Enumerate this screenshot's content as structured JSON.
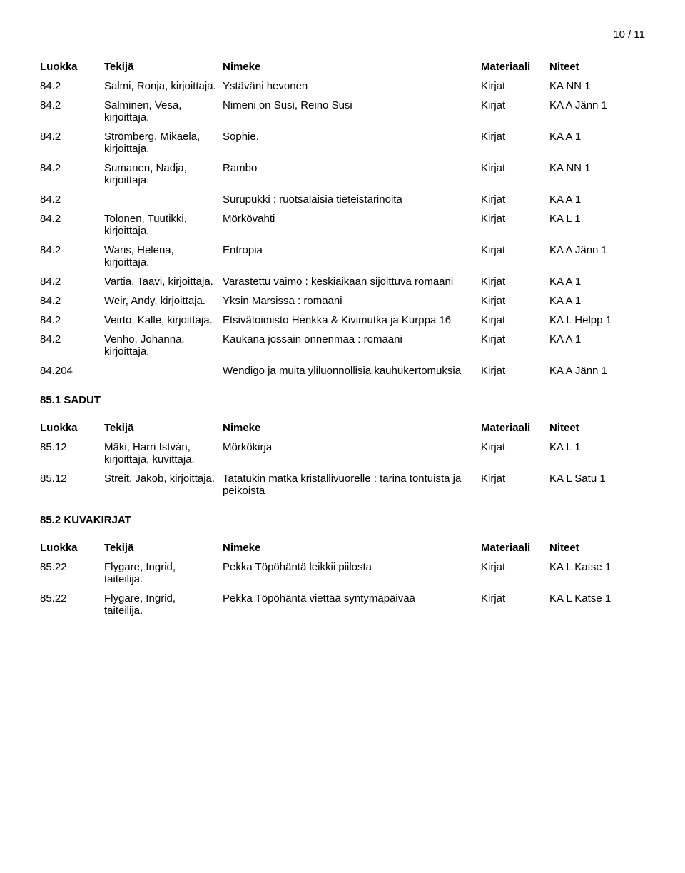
{
  "page_number": "10 / 11",
  "headers": {
    "luokka": "Luokka",
    "tekija": "Tekijä",
    "nimeke": "Nimeke",
    "materiaali": "Materiaali",
    "niteet": "Niteet"
  },
  "sections": [
    {
      "title": null,
      "rows": [
        {
          "luokka": "84.2",
          "tekija": "Salmi, Ronja, kirjoittaja.",
          "nimeke": "Ystäväni hevonen",
          "mat": "Kirjat",
          "niteet": "KA NN 1"
        },
        {
          "luokka": "84.2",
          "tekija": "Salminen, Vesa, kirjoittaja.",
          "nimeke": "Nimeni on Susi, Reino Susi",
          "mat": "Kirjat",
          "niteet": "KA A Jänn 1"
        },
        {
          "luokka": "84.2",
          "tekija": "Strömberg, Mikaela, kirjoittaja.",
          "nimeke": "Sophie.",
          "mat": "Kirjat",
          "niteet": "KA A 1"
        },
        {
          "luokka": "84.2",
          "tekija": "Sumanen, Nadja, kirjoittaja.",
          "nimeke": "Rambo",
          "mat": "Kirjat",
          "niteet": "KA NN 1"
        },
        {
          "luokka": "84.2",
          "tekija": "",
          "nimeke": "Surupukki : ruotsalaisia tieteistarinoita",
          "mat": "Kirjat",
          "niteet": "KA A 1"
        },
        {
          "luokka": "84.2",
          "tekija": "Tolonen, Tuutikki, kirjoittaja.",
          "nimeke": "Mörkövahti",
          "mat": "Kirjat",
          "niteet": "KA L 1"
        },
        {
          "luokka": "84.2",
          "tekija": "Waris, Helena, kirjoittaja.",
          "nimeke": "Entropia",
          "mat": "Kirjat",
          "niteet": "KA A Jänn 1"
        },
        {
          "luokka": "84.2",
          "tekija": "Vartia, Taavi, kirjoittaja.",
          "nimeke": "Varastettu vaimo : keskiaikaan sijoittuva romaani",
          "mat": "Kirjat",
          "niteet": "KA A 1"
        },
        {
          "luokka": "84.2",
          "tekija": "Weir, Andy, kirjoittaja.",
          "nimeke": "Yksin Marsissa : romaani",
          "mat": "Kirjat",
          "niteet": "KA A 1"
        },
        {
          "luokka": "84.2",
          "tekija": "Veirto, Kalle, kirjoittaja.",
          "nimeke": "Etsivätoimisto Henkka & Kivimutka ja Kurppa 16",
          "mat": "Kirjat",
          "niteet": "KA L Helpp 1"
        },
        {
          "luokka": "84.2",
          "tekija": "Venho, Johanna, kirjoittaja.",
          "nimeke": "Kaukana jossain onnenmaa : romaani",
          "mat": "Kirjat",
          "niteet": "KA A 1"
        },
        {
          "luokka": "84.204",
          "tekija": "",
          "nimeke": "Wendigo ja muita yliluonnollisia kauhukertomuksia",
          "mat": "Kirjat",
          "niteet": "KA A Jänn 1"
        }
      ]
    },
    {
      "title": "85.1 SADUT",
      "rows": [
        {
          "luokka": "85.12",
          "tekija": "Mäki, Harri István, kirjoittaja, kuvittaja.",
          "nimeke": "Mörkökirja",
          "mat": "Kirjat",
          "niteet": "KA L 1"
        },
        {
          "luokka": "85.12",
          "tekija": "Streit, Jakob, kirjoittaja.",
          "nimeke": "Tatatukin matka kristallivuorelle : tarina tontuista ja peikoista",
          "mat": "Kirjat",
          "niteet": "KA L Satu 1"
        }
      ]
    },
    {
      "title": "85.2 KUVAKIRJAT",
      "rows": [
        {
          "luokka": "85.22",
          "tekija": "Flygare, Ingrid, taiteilija.",
          "nimeke": "Pekka Töpöhäntä leikkii piilosta",
          "mat": "Kirjat",
          "niteet": "KA L Katse 1"
        },
        {
          "luokka": "85.22",
          "tekija": "Flygare, Ingrid, taiteilija.",
          "nimeke": "Pekka Töpöhäntä viettää syntymäpäivää",
          "mat": "Kirjat",
          "niteet": "KA L Katse 1"
        }
      ]
    }
  ]
}
